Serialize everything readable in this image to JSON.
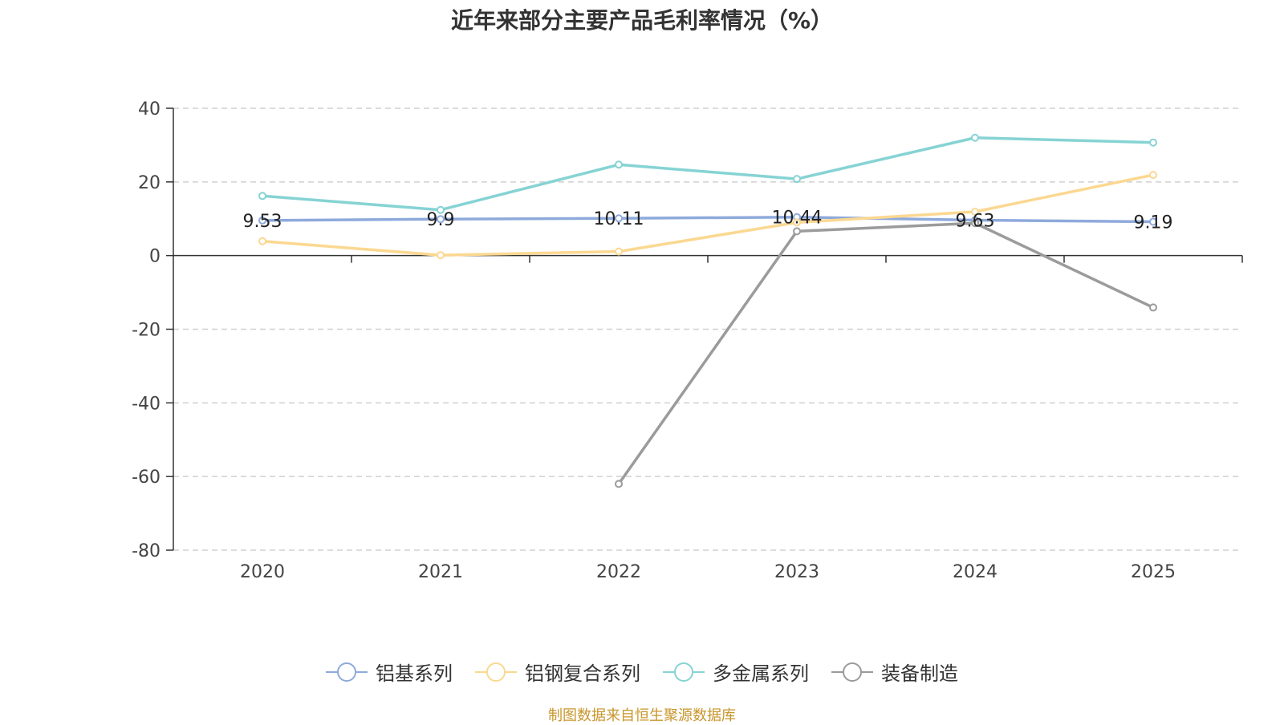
{
  "chart_data": {
    "type": "line",
    "title": "近年来部分主要产品毛利率情况（%）",
    "x": [
      "2020",
      "2021",
      "2022",
      "2023",
      "2024",
      "2025"
    ],
    "ylim": [
      -80,
      40
    ],
    "yticks": [
      "40",
      "20",
      "0",
      "-20",
      "-40",
      "-60",
      "-80"
    ],
    "grid": true,
    "legend_position": "bottom",
    "series": [
      {
        "name": "铝基系列",
        "color": "#8eaadb",
        "values": [
          9.53,
          9.9,
          10.11,
          10.44,
          9.63,
          9.19
        ],
        "labels": [
          "9.53",
          "9.9",
          "10.11",
          "10.44",
          "9.63",
          "9.19"
        ]
      },
      {
        "name": "铝钢复合系列",
        "color": "#fbd891",
        "values": [
          3.9,
          0.1,
          1.1,
          9.0,
          11.9,
          21.9
        ]
      },
      {
        "name": "多金属系列",
        "color": "#86d3d4",
        "values": [
          16.2,
          12.4,
          24.7,
          20.8,
          32.0,
          30.7
        ]
      },
      {
        "name": "装备制造",
        "color": "#9b9b9b",
        "values": [
          null,
          null,
          -62.0,
          6.6,
          8.8,
          -14.1
        ]
      }
    ]
  },
  "footer": {
    "source": "制图数据来自恒生聚源数据库"
  }
}
